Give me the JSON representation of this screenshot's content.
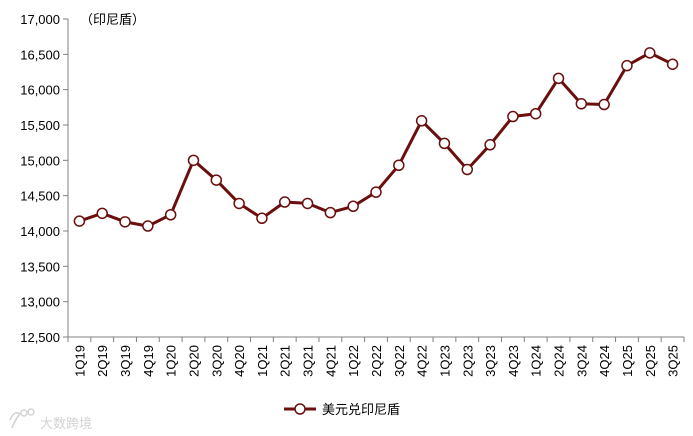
{
  "chart_data": {
    "type": "line",
    "unit_label": "（印尼盾）",
    "ylim": [
      12500,
      17000
    ],
    "y_ticks": [
      12500,
      13000,
      13500,
      14000,
      14500,
      15000,
      15500,
      16000,
      16500,
      17000
    ],
    "y_tick_labels": [
      "12,500",
      "13,000",
      "13,500",
      "14,000",
      "14,500",
      "15,000",
      "15,500",
      "16,000",
      "16,500",
      "17,000"
    ],
    "categories": [
      "1Q19",
      "2Q19",
      "3Q19",
      "4Q19",
      "1Q20",
      "2Q20",
      "3Q20",
      "4Q20",
      "1Q21",
      "2Q21",
      "3Q21",
      "4Q21",
      "1Q22",
      "2Q22",
      "3Q22",
      "4Q22",
      "1Q23",
      "2Q23",
      "3Q23",
      "4Q23",
      "1Q24",
      "2Q24",
      "3Q24",
      "4Q24",
      "1Q25",
      "2Q25",
      "3Q25"
    ],
    "series": [
      {
        "name": "美元兑印尼盾",
        "color": "#6b0e0e",
        "values": [
          14140,
          14250,
          14130,
          14070,
          14230,
          15000,
          14720,
          14390,
          14180,
          14410,
          14390,
          14260,
          14350,
          14550,
          14930,
          15560,
          15240,
          14870,
          15220,
          15620,
          15660,
          16160,
          15800,
          15790,
          16340,
          16520,
          16360
        ]
      }
    ],
    "grid": false,
    "legend_position": "bottom-center"
  },
  "watermark": {
    "text": "大数跨境",
    "icon": "logo-icon"
  }
}
